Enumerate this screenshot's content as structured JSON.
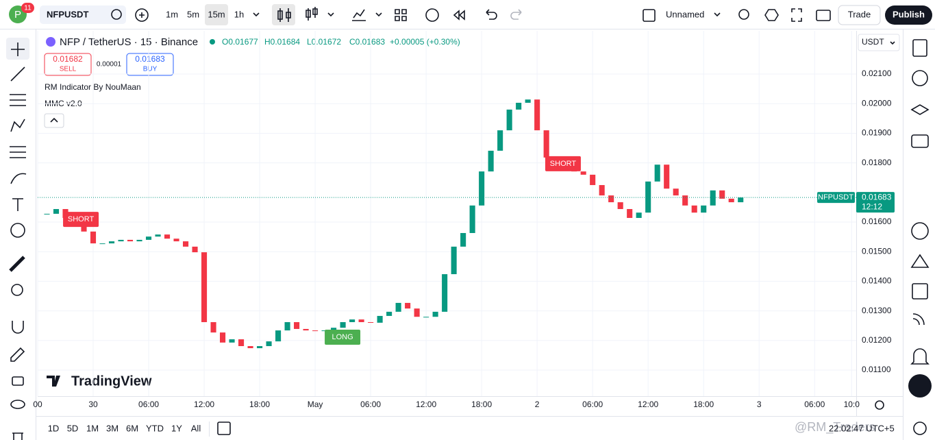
{
  "toolbar": {
    "avatar": "P",
    "badge": "11",
    "symbol": "NFPUSDT",
    "intervals": [
      "1m",
      "5m",
      "15m",
      "1h"
    ],
    "layout_name": "Unnamed",
    "trade": "Trade",
    "publish": "Publish"
  },
  "legend": {
    "title": "NFP / TetherUS · 15 · Binance",
    "open": "O0.01677",
    "high": "H0.01684",
    "low": "L0.01672",
    "close": "C0.01683",
    "change": "+0.00005 (+0.30%)"
  },
  "order": {
    "sell_price": "0.01682",
    "sell": "SELL",
    "spread": "0.00001",
    "buy_price": "0.01683",
    "buy": "BUY"
  },
  "indicators": [
    "RM Indicator By NouMaan",
    "MMC v2.0"
  ],
  "price_axis": {
    "currency": "USDT",
    "symbol": "NFPUSDT",
    "countdown": "12:12"
  },
  "chart_data": {
    "type": "candlestick",
    "up_color": "#089981",
    "down_color": "#f23645",
    "x": [
      -5,
      -4,
      -3,
      -2,
      -1,
      0,
      1,
      2,
      3,
      4,
      5,
      6,
      7,
      8,
      9,
      10,
      11,
      12,
      13,
      14,
      15,
      16,
      17,
      18,
      19,
      20,
      21,
      22,
      23,
      24,
      25,
      26,
      27,
      28,
      29,
      30,
      31,
      32,
      33,
      34,
      35,
      36,
      37,
      38,
      39,
      40,
      41,
      42,
      43,
      44,
      45,
      46,
      47,
      48,
      49,
      50,
      51,
      52,
      53,
      54,
      55,
      56,
      57,
      58,
      59,
      60,
      61,
      62,
      63,
      64,
      65,
      66,
      67,
      68,
      69,
      70
    ],
    "values": [
      0.01628,
      0.01644,
      0.01614,
      0.01598,
      0.01568,
      0.01528,
      0.01528,
      0.01535,
      0.0154,
      0.01535,
      0.0154,
      0.01551,
      0.01558,
      0.01544,
      0.01535,
      0.01517,
      0.01498,
      0.01262,
      0.01227,
      0.01193,
      0.01204,
      0.01181,
      0.01174,
      0.01181,
      0.01197,
      0.01234,
      0.01262,
      0.01239,
      0.01234,
      0.01232,
      0.01234,
      0.01243,
      0.01262,
      0.01271,
      0.01262,
      0.0126,
      0.01283,
      0.01297,
      0.01327,
      0.01308,
      0.0128,
      0.0128,
      0.01297,
      0.01424,
      0.01517,
      0.01563,
      0.01656,
      0.01771,
      0.01841,
      0.0191,
      0.0198,
      0.02003,
      0.02014,
      0.0191,
      0.01818,
      0.01783,
      0.01794,
      0.01771,
      0.0176,
      0.01725,
      0.0169,
      0.01667,
      0.01644,
      0.01614,
      0.01632,
      0.01737,
      0.01794,
      0.01713,
      0.0169,
      0.01656,
      0.01632,
      0.01656,
      0.01707,
      0.01679,
      0.01667,
      0.01683
    ],
    "last_price": 0.01683,
    "xlim": [
      -6,
      82.5
    ],
    "ylim": [
      0.01012,
      0.02246
    ],
    "xticks": [
      {
        "value": -6,
        "label": "00"
      },
      {
        "value": 0,
        "label": "30"
      },
      {
        "value": 6,
        "label": "06:00"
      },
      {
        "value": 12,
        "label": "12:00"
      },
      {
        "value": 18,
        "label": "18:00"
      },
      {
        "value": 24,
        "label": "May"
      },
      {
        "value": 30,
        "label": "06:00"
      },
      {
        "value": 36,
        "label": "12:00"
      },
      {
        "value": 42,
        "label": "18:00"
      },
      {
        "value": 48,
        "label": "2"
      },
      {
        "value": 54,
        "label": "06:00"
      },
      {
        "value": 60,
        "label": "12:00"
      },
      {
        "value": 66,
        "label": "18:00"
      },
      {
        "value": 72,
        "label": "3"
      },
      {
        "value": 78,
        "label": "06:00"
      },
      {
        "value": 82,
        "label": "10:0"
      }
    ],
    "yticks": [
      {
        "value": 0.011,
        "label": "0.01100"
      },
      {
        "value": 0.012,
        "label": "0.01200"
      },
      {
        "value": 0.013,
        "label": "0.01300"
      },
      {
        "value": 0.014,
        "label": "0.01400"
      },
      {
        "value": 0.015,
        "label": "0.01500"
      },
      {
        "value": 0.016,
        "label": "0.01600"
      },
      {
        "value": 0.018,
        "label": "0.01800"
      },
      {
        "value": 0.019,
        "label": "0.01900"
      },
      {
        "value": 0.02,
        "label": "0.02000"
      },
      {
        "value": 0.021,
        "label": "0.02100"
      }
    ],
    "grid": true,
    "signals": [
      {
        "label": "SHORT",
        "x": -1.33,
        "price": 0.01609,
        "color": "#f23645"
      },
      {
        "label": "LONG",
        "x": 26.96,
        "price": 0.01211,
        "color": "#4caf50"
      },
      {
        "label": "SHORT",
        "x": 50.8,
        "price": 0.01797,
        "color": "#f23645"
      }
    ]
  },
  "logo": "TradingView",
  "ranges": [
    "1D",
    "5D",
    "1M",
    "3M",
    "6M",
    "YTD",
    "1Y",
    "All"
  ],
  "clock": "22:02:47 UTC+5",
  "watermark": "@RM_Traders"
}
